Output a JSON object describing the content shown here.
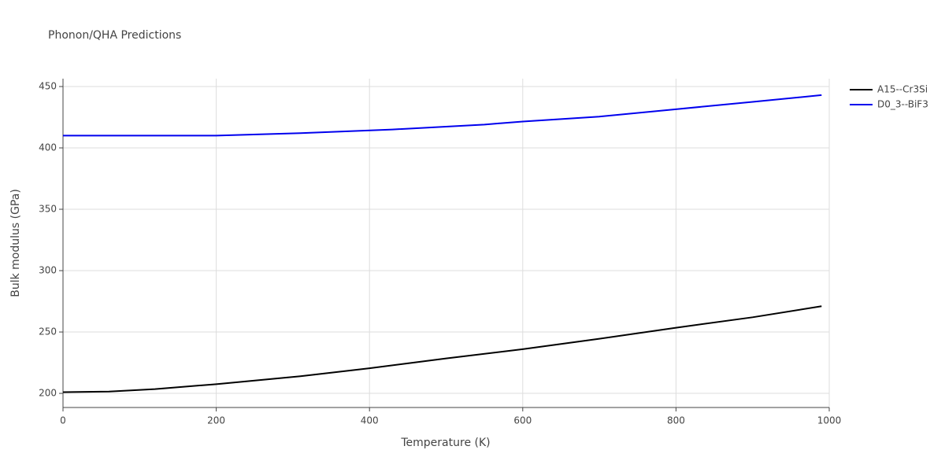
{
  "chart_data": {
    "type": "line",
    "title": "Phonon/QHA Predictions",
    "x_label": "Temperature (K)",
    "y_label": "Bulk modulus (GPa)",
    "xlim": [
      0,
      1000
    ],
    "xticks": [
      0,
      200,
      400,
      600,
      800,
      1000
    ],
    "ylim": [
      188.5,
      456.4
    ],
    "yticks": [
      200,
      250,
      300,
      350,
      400,
      450
    ],
    "grid": true,
    "legend": "outside-right",
    "series": [
      {
        "name": "A15--Cr3Si",
        "color": "#000000",
        "x": [
          0,
          60,
          120,
          200,
          310,
          400,
          450,
          500,
          600,
          700,
          800,
          900,
          990
        ],
        "values": [
          201,
          201.5,
          203.5,
          207.5,
          214,
          220.5,
          224.5,
          228.5,
          236,
          244.5,
          253.5,
          262,
          271
        ]
      },
      {
        "name": "D0_3--BiF3",
        "color": "#0000ee",
        "x": [
          0,
          200,
          310,
          430,
          550,
          600,
          700,
          800,
          900,
          990
        ],
        "values": [
          410,
          410,
          412,
          415,
          419,
          421.5,
          425.5,
          431.5,
          437.5,
          443
        ]
      }
    ]
  }
}
